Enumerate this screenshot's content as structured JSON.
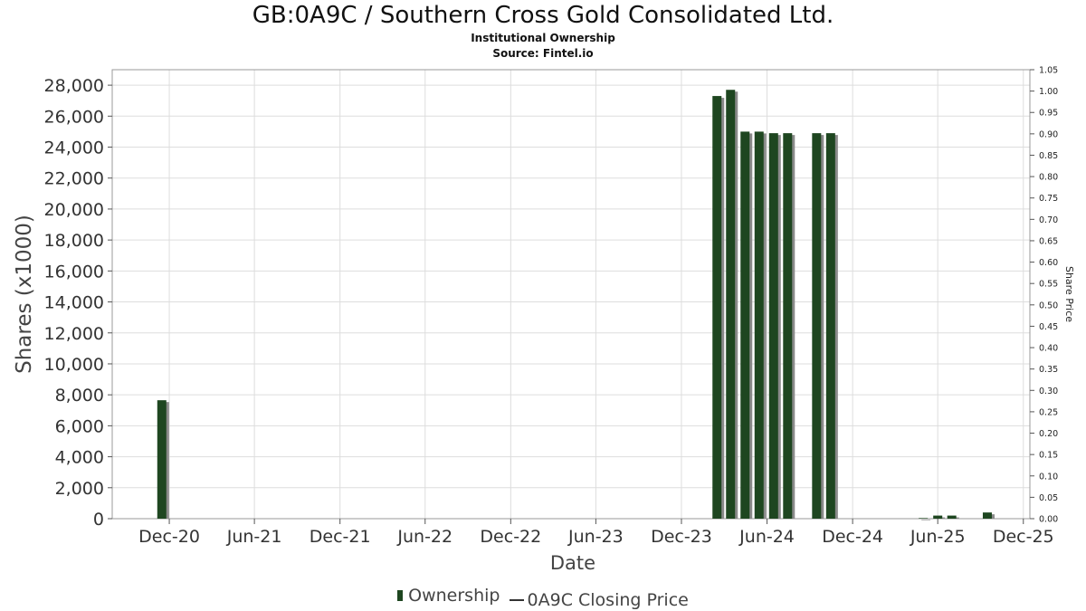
{
  "header": {
    "title": "GB:0A9C / Southern Cross Gold Consolidated Ltd.",
    "subtitle": "Institutional Ownership",
    "source": "Source: Fintel.io"
  },
  "legend": {
    "ownership_label": "Ownership",
    "price_label": "0A9C Closing Price"
  },
  "colors": {
    "bar": "#1e4620",
    "bar_shadow": "#8a8a8a",
    "grid": "#dddddd",
    "axis": "#555555"
  },
  "chart_data": {
    "type": "bar",
    "title": "GB:0A9C / Southern Cross Gold Consolidated Ltd.",
    "subtitle": "Institutional Ownership",
    "xlabel": "Date",
    "ylabel": "Shares (x1000)",
    "y2label": "Share Price",
    "ylim": [
      0,
      29000
    ],
    "y2lim": [
      0,
      1.05
    ],
    "grid": true,
    "legend_position": "bottom",
    "yticks": [
      0,
      2000,
      4000,
      6000,
      8000,
      10000,
      12000,
      14000,
      16000,
      18000,
      20000,
      22000,
      24000,
      26000,
      28000
    ],
    "ytick_labels": [
      "0",
      "2,000",
      "4,000",
      "6,000",
      "8,000",
      "10,000",
      "12,000",
      "14,000",
      "16,000",
      "18,000",
      "20,000",
      "22,000",
      "24,000",
      "26,000",
      "28,000"
    ],
    "y2ticks": [
      "0.00",
      "0.05",
      "0.10",
      "0.15",
      "0.20",
      "0.25",
      "0.30",
      "0.35",
      "0.40",
      "0.45",
      "0.50",
      "0.55",
      "0.60",
      "0.65",
      "0.70",
      "0.75",
      "0.80",
      "0.85",
      "0.90",
      "0.95",
      "1.00",
      "1.05"
    ],
    "xticks": [
      "2020-12-01",
      "2021-06-01",
      "2021-12-01",
      "2022-06-01",
      "2022-12-01",
      "2023-06-01",
      "2023-12-01",
      "2024-06-01",
      "2024-12-01",
      "2025-06-01",
      "2025-12-01"
    ],
    "xtick_labels": [
      "Dec-20",
      "Jun-21",
      "Dec-21",
      "Jun-22",
      "Dec-22",
      "Jun-23",
      "Dec-23",
      "Jun-24",
      "Dec-24",
      "Jun-25",
      "Dec-25"
    ],
    "xlim": [
      "2020-08-01",
      "2025-12-15"
    ],
    "series": [
      {
        "name": "Ownership",
        "type": "bar",
        "x": [
          "2020-11-15",
          "2024-02-15",
          "2024-03-15",
          "2024-04-15",
          "2024-05-15",
          "2024-06-15",
          "2024-07-15",
          "2024-09-15",
          "2024-10-15",
          "2025-05-01",
          "2025-06-01",
          "2025-07-01",
          "2025-09-15"
        ],
        "values": [
          7650,
          27300,
          27700,
          25000,
          25000,
          24900,
          24900,
          24900,
          24900,
          40,
          200,
          200,
          400
        ]
      },
      {
        "name": "0A9C Closing Price",
        "type": "line",
        "x": [],
        "values": []
      }
    ]
  }
}
